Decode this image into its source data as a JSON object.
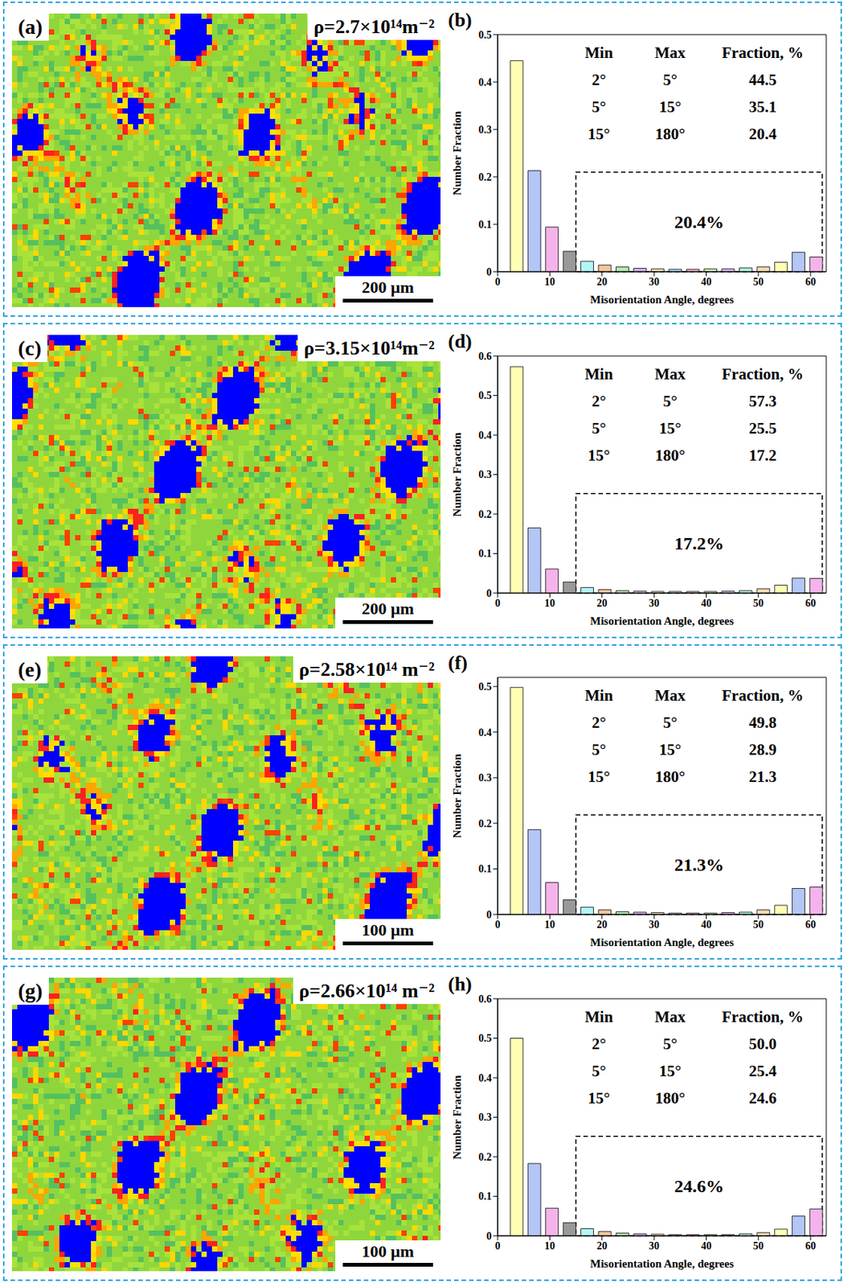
{
  "maps": [
    {
      "letter": "(a)",
      "rho_label": "ρ=2.7×10¹⁴m⁻²",
      "scale_bar": "200 μm"
    },
    {
      "letter": "(c)",
      "rho_label": "ρ=3.15×10¹⁴m⁻²",
      "scale_bar": "200 μm"
    },
    {
      "letter": "(e)",
      "rho_label": "ρ=2.58×10¹⁴ m⁻²",
      "scale_bar": "100 μm"
    },
    {
      "letter": "(g)",
      "rho_label": "ρ=2.66×10¹⁴ m⁻²",
      "scale_bar": "100 μm"
    }
  ],
  "chart_data": [
    {
      "type": "histogram",
      "letter": "(b)",
      "xlabel": "Misorientation Angle, degrees",
      "ylabel": "Number Fraction",
      "bins": [
        2,
        5.38,
        8.76,
        12.13,
        15.51,
        18.89,
        22.27,
        25.64,
        29.02,
        32.4,
        35.78,
        39.16,
        42.53,
        45.91,
        49.29,
        52.67,
        56.04,
        59.42,
        62.8
      ],
      "values": [
        0.445,
        0.213,
        0.094,
        0.043,
        0.022,
        0.014,
        0.01,
        0.007,
        0.006,
        0.005,
        0.005,
        0.006,
        0.006,
        0.008,
        0.01,
        0.02,
        0.041,
        0.031
      ],
      "colors": [
        "#ffffb3",
        "#b3c6f5",
        "#f5b3eb",
        "#999999",
        "#b3f5f5",
        "#f5c49a",
        "#b3ebb3",
        "#d9b3f5",
        "#f5e0b3",
        "#b3d9f5",
        "#f5b3c6",
        "#c6f5b3",
        "#e0b3f5",
        "#b3f5d9",
        "#f5d9b3",
        "#ffffb3",
        "#b3c6f5",
        "#f5b3eb"
      ],
      "xlim": [
        0,
        63
      ],
      "xticks": [
        0,
        10,
        20,
        30,
        40,
        50,
        60
      ],
      "ylim": [
        0,
        0.5
      ],
      "yticks": [
        0,
        0.1,
        0.2,
        0.3,
        0.4,
        0.5
      ],
      "table": {
        "header": [
          "Min",
          "Max",
          "Fraction, %"
        ],
        "rows": [
          [
            "2°",
            "5°",
            "44.5"
          ],
          [
            "5°",
            "15°",
            "35.1"
          ],
          [
            "15°",
            "180°",
            "20.4"
          ]
        ]
      },
      "box_label": "20.4%"
    },
    {
      "type": "histogram",
      "letter": "(d)",
      "xlabel": "Misorientation Angle, degrees",
      "ylabel": "Number Fraction",
      "bins": [
        2,
        5.38,
        8.76,
        12.13,
        15.51,
        18.89,
        22.27,
        25.64,
        29.02,
        32.4,
        35.78,
        39.16,
        42.53,
        45.91,
        49.29,
        52.67,
        56.04,
        59.42,
        62.8
      ],
      "values": [
        0.573,
        0.165,
        0.061,
        0.028,
        0.014,
        0.009,
        0.006,
        0.005,
        0.004,
        0.004,
        0.004,
        0.004,
        0.005,
        0.006,
        0.011,
        0.02,
        0.038,
        0.037
      ],
      "colors": [
        "#ffffb3",
        "#b3c6f5",
        "#f5b3eb",
        "#999999",
        "#b3f5f5",
        "#f5c49a",
        "#b3ebb3",
        "#d9b3f5",
        "#f5e0b3",
        "#b3d9f5",
        "#f5b3c6",
        "#c6f5b3",
        "#e0b3f5",
        "#b3f5d9",
        "#f5d9b3",
        "#ffffb3",
        "#b3c6f5",
        "#f5b3eb"
      ],
      "xlim": [
        0,
        63
      ],
      "xticks": [
        0,
        10,
        20,
        30,
        40,
        50,
        60
      ],
      "ylim": [
        0,
        0.6
      ],
      "yticks": [
        0,
        0.1,
        0.2,
        0.3,
        0.4,
        0.5,
        0.6
      ],
      "table": {
        "header": [
          "Min",
          "Max",
          "Fraction, %"
        ],
        "rows": [
          [
            "2°",
            "5°",
            "57.3"
          ],
          [
            "5°",
            "15°",
            "25.5"
          ],
          [
            "15°",
            "180°",
            "17.2"
          ]
        ]
      },
      "box_label": "17.2%"
    },
    {
      "type": "histogram",
      "letter": "(f)",
      "xlabel": "Misorientation Angle, degrees",
      "ylabel": "Number Fraction",
      "bins": [
        2,
        5.38,
        8.76,
        12.13,
        15.51,
        18.89,
        22.27,
        25.64,
        29.02,
        32.4,
        35.78,
        39.16,
        42.53,
        45.91,
        49.29,
        52.67,
        56.04,
        59.42,
        62.8
      ],
      "values": [
        0.498,
        0.186,
        0.07,
        0.032,
        0.016,
        0.01,
        0.006,
        0.005,
        0.004,
        0.003,
        0.003,
        0.003,
        0.004,
        0.005,
        0.01,
        0.02,
        0.057,
        0.06
      ],
      "colors": [
        "#ffffb3",
        "#b3c6f5",
        "#f5b3eb",
        "#999999",
        "#b3f5f5",
        "#f5c49a",
        "#b3ebb3",
        "#d9b3f5",
        "#f5e0b3",
        "#b3d9f5",
        "#f5b3c6",
        "#c6f5b3",
        "#e0b3f5",
        "#b3f5d9",
        "#f5d9b3",
        "#ffffb3",
        "#b3c6f5",
        "#f5b3eb"
      ],
      "xlim": [
        0,
        63
      ],
      "xticks": [
        0,
        10,
        20,
        30,
        40,
        50,
        60
      ],
      "ylim": [
        0,
        0.52
      ],
      "yticks": [
        0,
        0.1,
        0.2,
        0.3,
        0.4,
        0.5
      ],
      "table": {
        "header": [
          "Min",
          "Max",
          "Fraction, %"
        ],
        "rows": [
          [
            "2°",
            "5°",
            "49.8"
          ],
          [
            "5°",
            "15°",
            "28.9"
          ],
          [
            "15°",
            "180°",
            "21.3"
          ]
        ]
      },
      "box_label": "21.3%"
    },
    {
      "type": "histogram",
      "letter": "(h)",
      "xlabel": "Misorientation Angle, degrees",
      "ylabel": "Number Fraction",
      "bins": [
        2,
        5.38,
        8.76,
        12.13,
        15.51,
        18.89,
        22.27,
        25.64,
        29.02,
        32.4,
        35.78,
        39.16,
        42.53,
        45.91,
        49.29,
        52.67,
        56.04,
        59.42,
        62.8
      ],
      "values": [
        0.5,
        0.183,
        0.07,
        0.033,
        0.018,
        0.011,
        0.007,
        0.005,
        0.004,
        0.003,
        0.003,
        0.003,
        0.003,
        0.005,
        0.008,
        0.017,
        0.05,
        0.068
      ],
      "colors": [
        "#ffffb3",
        "#b3c6f5",
        "#f5b3eb",
        "#999999",
        "#b3f5f5",
        "#f5c49a",
        "#b3ebb3",
        "#d9b3f5",
        "#f5e0b3",
        "#b3d9f5",
        "#f5b3c6",
        "#c6f5b3",
        "#e0b3f5",
        "#b3f5d9",
        "#f5d9b3",
        "#ffffb3",
        "#b3c6f5",
        "#f5b3eb"
      ],
      "xlim": [
        0,
        63
      ],
      "xticks": [
        0,
        10,
        20,
        30,
        40,
        50,
        60
      ],
      "ylim": [
        0,
        0.6
      ],
      "yticks": [
        0,
        0.1,
        0.2,
        0.3,
        0.4,
        0.5,
        0.6
      ],
      "table": {
        "header": [
          "Min",
          "Max",
          "Fraction, %"
        ],
        "rows": [
          [
            "2°",
            "5°",
            "50.0"
          ],
          [
            "5°",
            "15°",
            "25.4"
          ],
          [
            "15°",
            "180°",
            "24.6"
          ]
        ]
      },
      "box_label": "24.6%"
    }
  ]
}
